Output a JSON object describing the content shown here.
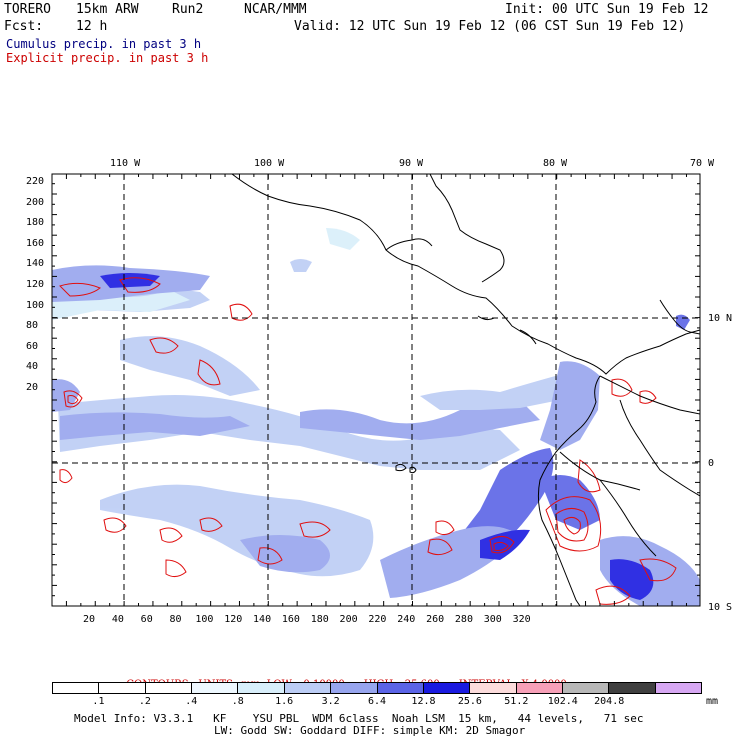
{
  "header": {
    "model": "TORERO",
    "grid": "15km ARW",
    "run": "Run2",
    "org": "NCAR/MMM",
    "init": "Init: 00 UTC Sun 19 Feb 12",
    "fcst_label": "Fcst:",
    "fcst_value": "12 h",
    "valid": "Valid: 12 UTC Sun 19 Feb 12 (06 CST Sun 19 Feb 12)"
  },
  "fields": {
    "cumulus": "Cumulus precip. in past 3 h",
    "explicit": "Explicit precip. in past 3 h",
    "cumulus_color": "#000080",
    "explicit_color": "#cc0000"
  },
  "lon_ticks": [
    "110 W",
    "100 W",
    "90 W",
    "80 W",
    "70 W"
  ],
  "lat_ticks": [
    "10 N",
    "0",
    "10 S"
  ],
  "y_grid_ticks": [
    "220",
    "200",
    "180",
    "160",
    "140",
    "120",
    "100",
    "80",
    "60",
    "40",
    "20"
  ],
  "x_grid_ticks": [
    "20",
    "40",
    "60",
    "80",
    "100",
    "120",
    "140",
    "160",
    "180",
    "200",
    "220",
    "240",
    "260",
    "280",
    "300",
    "320"
  ],
  "contours_text": {
    "label": "CONTOURS:",
    "units": "UNITS=mm",
    "low": "LOW= 0.10000",
    "high": "HIGH= 25.600",
    "interval": "INTERVAL=X 4.0000"
  },
  "colorbar": {
    "labels": [
      ".1",
      ".2",
      ".4",
      ".8",
      "1.6",
      "3.2",
      "6.4",
      "12.8",
      "25.6",
      "51.2",
      "102.4",
      "204.8"
    ],
    "unit": "mm",
    "colors": [
      "#ffffff",
      "#ffffff",
      "#ffffff",
      "#eef8ff",
      "#d8eefa",
      "#bccdf5",
      "#97a5ee",
      "#5b64e6",
      "#1a1ae0",
      "#fcdcdc",
      "#f7a0b8",
      "#b8b8b8",
      "#404040",
      "#d7a8f3"
    ]
  },
  "model_info": {
    "line1": "Model Info: V3.3.1   KF    YSU PBL  WDM 6class  Noah LSM  15 km,   44 levels,   71 sec",
    "line2": "LW: Godd SW: Goddard DIFF: simple KM: 2D Smagor"
  }
}
